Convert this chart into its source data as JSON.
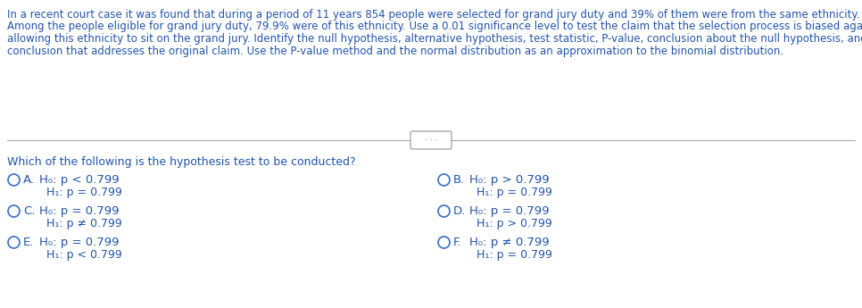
{
  "background_color": "#ffffff",
  "text_color": "#2255aa",
  "paragraph_lines": [
    "In a recent court case it was found that during a period of 11 years 854 people were selected for grand jury duty and 39% of them were from the same ethnicity.",
    "Among the people eligible for grand jury duty, 79.9% were of this ethnicity. Use a 0.01 significance level to test the claim that the selection process is biased against",
    "allowing this ethnicity to sit on the grand jury. Identify the null hypothesis, alternative hypothesis, test statistic, P-value, conclusion about the null hypothesis, and final",
    "conclusion that addresses the original claim. Use the P-value method and the normal distribution as an approximation to the binomial distribution."
  ],
  "question": "Which of the following is the hypothesis test to be conducted?",
  "options": [
    {
      "label": "A.",
      "h0": "H₀: p < 0.799",
      "h1": "H₁: p = 0.799",
      "col": 0,
      "row": 0
    },
    {
      "label": "B.",
      "h0": "H₀: p > 0.799",
      "h1": "H₁: p = 0.799",
      "col": 1,
      "row": 0
    },
    {
      "label": "C.",
      "h0": "H₀: p = 0.799",
      "h1": "H₁: p ≠ 0.799",
      "col": 0,
      "row": 1
    },
    {
      "label": "D.",
      "h0": "H₀: p = 0.799",
      "h1": "H₁: p > 0.799",
      "col": 1,
      "row": 1
    },
    {
      "label": "E.",
      "h0": "H₀: p = 0.799",
      "h1": "H₁: p < 0.799",
      "col": 0,
      "row": 2
    },
    {
      "label": "F.",
      "h0": "H₀: p ≠ 0.799",
      "h1": "H₁: p = 0.799",
      "col": 1,
      "row": 2
    }
  ],
  "font_size_para": 8.5,
  "font_size_question": 9.0,
  "font_size_options": 9.5,
  "font_size_h0": 9.5,
  "font_size_h1": 9.0,
  "divider_color": "#aaaaaa",
  "circle_color": "#4477cc",
  "dots_color": "#666666",
  "dots_border_color": "#aaaaaa"
}
